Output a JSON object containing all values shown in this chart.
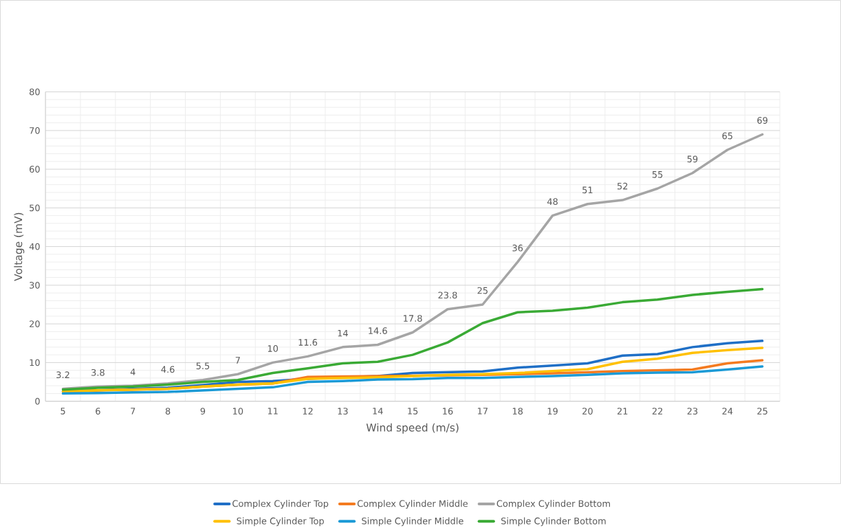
{
  "chart_data": {
    "type": "line",
    "xlabel": "Wind speed (m/s)",
    "ylabel": "Voltage (mV)",
    "categories": [
      "5",
      "6",
      "7",
      "8",
      "9",
      "10",
      "11",
      "12",
      "13",
      "14",
      "15",
      "16",
      "17",
      "18",
      "19",
      "20",
      "21",
      "22",
      "23",
      "24",
      "25"
    ],
    "ylim": [
      0,
      80
    ],
    "yticks": [
      0,
      10,
      20,
      30,
      40,
      50,
      60,
      70,
      80
    ],
    "grid": true,
    "legend": "bottom",
    "marker": "none",
    "line_style": "solid",
    "series": [
      {
        "name": "Complex Cylinder Top",
        "color": "#1f6fc6",
        "values": [
          2.5,
          2.8,
          3.2,
          3.5,
          4.2,
          5,
          5.2,
          5.8,
          6.2,
          6.5,
          7.3,
          7.5,
          7.7,
          8.7,
          9.2,
          9.8,
          11.8,
          12.2,
          14,
          15,
          15.6
        ]
      },
      {
        "name": "Complex Cylinder Middle",
        "color": "#f47b20",
        "values": [
          2.5,
          2.8,
          3,
          3.2,
          3.8,
          4.3,
          4.6,
          6.3,
          6.4,
          6.5,
          6.6,
          6.7,
          6.8,
          7,
          7.2,
          7.5,
          7.8,
          8,
          8.2,
          9.8,
          10.6
        ]
      },
      {
        "name": "Complex Cylinder Bottom",
        "color": "#a5a5a5",
        "values": [
          3.2,
          3.8,
          4,
          4.6,
          5.5,
          7,
          10,
          11.6,
          14,
          14.6,
          17.8,
          23.8,
          25,
          36,
          48,
          51,
          52,
          55,
          59,
          65,
          69
        ],
        "value_labels": [
          "3.2",
          "3.8",
          "4",
          "4.6",
          "5.5",
          "7",
          "10",
          "11.6",
          "14",
          "14.6",
          "17.8",
          "23.8",
          "25",
          "36",
          "48",
          "51",
          "52",
          "55",
          "59",
          "65",
          "69"
        ]
      },
      {
        "name": "Simple Cylinder Top",
        "color": "#ffc000",
        "values": [
          2.5,
          2.8,
          3,
          3.2,
          3.8,
          4.3,
          4.6,
          5.8,
          6,
          6.2,
          6.5,
          6.8,
          7,
          7.3,
          7.8,
          8.3,
          10.2,
          11,
          12.5,
          13.2,
          13.8
        ]
      },
      {
        "name": "Simple Cylinder Middle",
        "color": "#1b9ad6",
        "values": [
          2,
          2.1,
          2.3,
          2.4,
          2.8,
          3.2,
          3.6,
          5,
          5.2,
          5.6,
          5.7,
          6,
          6,
          6.3,
          6.5,
          6.8,
          7.2,
          7.4,
          7.5,
          8.2,
          9
        ]
      },
      {
        "name": "Simple Cylinder Bottom",
        "color": "#3aaa35",
        "values": [
          3,
          3.5,
          3.8,
          4.3,
          5,
          5.5,
          7.3,
          8.5,
          9.8,
          10.2,
          12,
          15.2,
          20.2,
          23,
          23.4,
          24.2,
          25.6,
          26.3,
          27.5,
          28.3,
          29
        ]
      }
    ]
  }
}
